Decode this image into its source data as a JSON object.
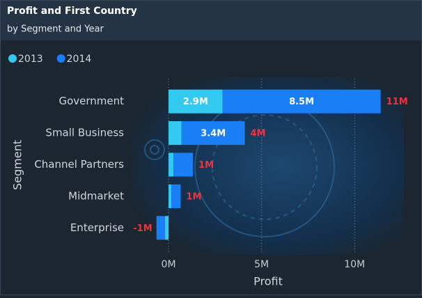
{
  "chart_data": {
    "type": "stacked_bar_horizontal",
    "title": "Profit and First Country",
    "subtitle": "by Segment and Year",
    "x_label": "Profit",
    "y_label": "Segment",
    "categories": [
      "Government",
      "Small Business",
      "Channel Partners",
      "Midmarket",
      "Enterprise"
    ],
    "series": [
      {
        "name": "2013",
        "color": "#33c9f0",
        "values": [
          2900000,
          700000,
          260000,
          150000,
          -200000
        ],
        "value_labels": [
          "2.9M",
          null,
          null,
          null,
          null
        ]
      },
      {
        "name": "2014",
        "color": "#1a7ef5",
        "values": [
          8500000,
          3400000,
          1050000,
          500000,
          -450000
        ],
        "value_labels": [
          "8.5M",
          "3.4M",
          null,
          null,
          null
        ]
      }
    ],
    "totals": {
      "color": "#f0323c",
      "values": [
        11400000,
        4100000,
        1310000,
        650000,
        -650000
      ],
      "value_labels": [
        "11M",
        "4M",
        "1M",
        "1M",
        "-1M"
      ]
    },
    "xlim": [
      -900000,
      12500000
    ],
    "xticks": [
      {
        "value": 0,
        "label": "0M"
      },
      {
        "value": 5000000,
        "label": "5M"
      },
      {
        "value": 10000000,
        "label": "10M"
      }
    ],
    "grid": true,
    "legend_position": "top-left"
  }
}
